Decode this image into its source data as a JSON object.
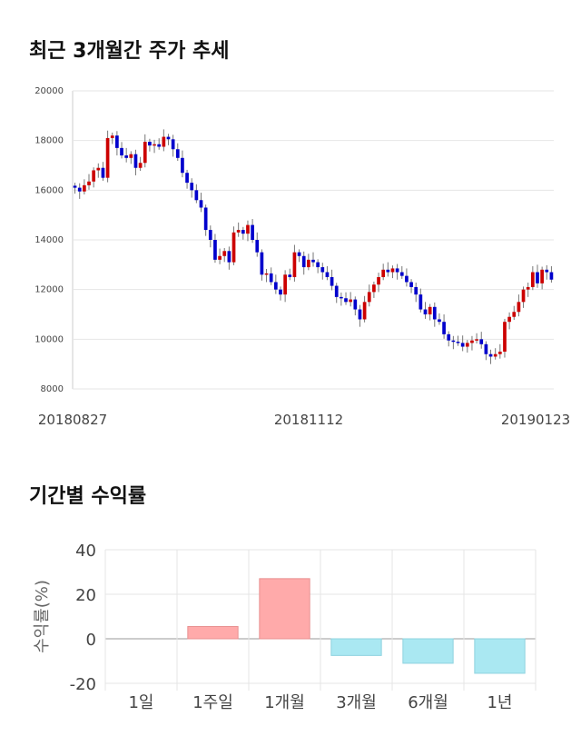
{
  "titles": {
    "price_trend": "최근 3개월간 주가 추세",
    "period_returns": "기간별 수익률"
  },
  "chart_data": [
    {
      "type": "candlestick",
      "title": "최근 3개월간 주가 추세",
      "ylim": [
        8000,
        20000
      ],
      "yticks": [
        8000,
        10000,
        12000,
        14000,
        16000,
        18000,
        20000
      ],
      "xtick_labels": [
        "20180827",
        "20181112",
        "20190123"
      ],
      "grid": true,
      "up_color": "#cc0000",
      "down_color": "#0000cc",
      "closes": [
        16100,
        15950,
        16200,
        16350,
        16800,
        16900,
        16500,
        18100,
        18200,
        17700,
        17400,
        17300,
        17450,
        16900,
        17100,
        17950,
        17800,
        17850,
        17750,
        18150,
        18050,
        17650,
        17300,
        16700,
        16300,
        16000,
        15600,
        15300,
        14400,
        14000,
        13200,
        13350,
        13550,
        13100,
        14300,
        14400,
        14250,
        14600,
        14000,
        13500,
        12600,
        12650,
        12300,
        12000,
        11800,
        12600,
        12500,
        13500,
        13350,
        12900,
        13200,
        13100,
        12900,
        12700,
        12500,
        12150,
        11700,
        11650,
        11500,
        11600,
        11200,
        10800,
        11500,
        11900,
        12200,
        12500,
        12800,
        12700,
        12850,
        12700,
        12550,
        12300,
        12100,
        11800,
        11200,
        11000,
        11300,
        10800,
        10700,
        10200,
        9950,
        9900,
        9850,
        9700,
        9850,
        9950,
        10000,
        9800,
        9400,
        9300,
        9400,
        9500,
        10700,
        10900,
        11100,
        11500,
        12000,
        12100,
        12700,
        12250,
        12800,
        12700,
        12400
      ],
      "series_description": "daily OHLC candles, values estimated from gridlines"
    },
    {
      "type": "bar",
      "title": "기간별 수익률",
      "categories": [
        "1일",
        "1주일",
        "1개월",
        "3개월",
        "6개월",
        "1년"
      ],
      "values": [
        0,
        5.5,
        27,
        -7.5,
        -11,
        -15.5
      ],
      "ylabel": "수익률(%)",
      "ylim": [
        -20,
        40
      ],
      "yticks": [
        -20,
        0,
        20,
        40
      ],
      "positive_color": "#ffaaaa",
      "negative_color": "#aae8f2",
      "grid": true
    }
  ]
}
